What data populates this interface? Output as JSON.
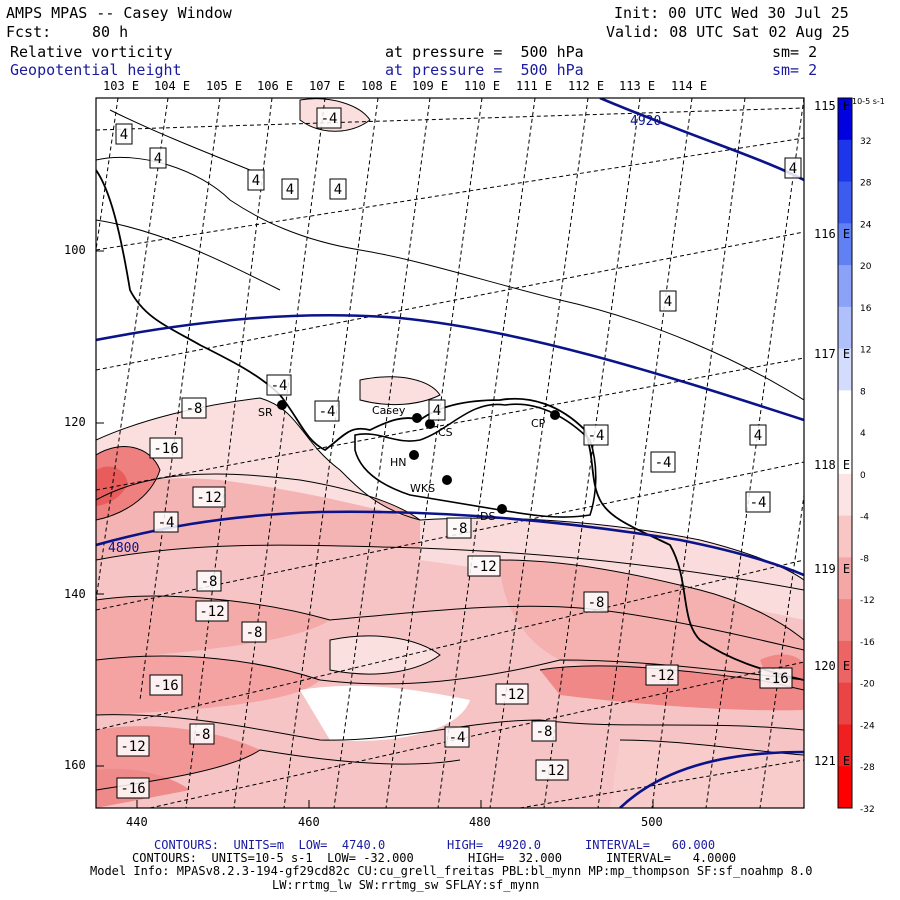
{
  "header": {
    "title": "AMPS MPAS -- Casey Window",
    "init": "Init: 00 UTC Wed 30 Jul 25",
    "fcst_label": "Fcst:",
    "fcst_value": "80 h",
    "valid": "Valid: 08 UTC Sat 02 Aug 25",
    "field1_name": "Relative vorticity",
    "field1_level": "at pressure =  500 hPa",
    "field1_sm": "sm= 2",
    "field2_name": "Geopotential height",
    "field2_level": "at pressure =  500 hPa",
    "field2_sm": "sm= 2"
  },
  "top_lon_labels": [
    "103 E",
    "104 E",
    "105 E",
    "106 E",
    "107 E",
    "108 E",
    "109 E",
    "110 E",
    "111 E",
    "112 E",
    "113 E",
    "114 E"
  ],
  "right_lon_labels": [
    "115 E",
    "116 E",
    "117 E",
    "118 E",
    "119 E",
    "120 E",
    "121 E"
  ],
  "x_ticks": [
    "440",
    "460",
    "480",
    "500"
  ],
  "y_ticks": [
    "100",
    "120",
    "140",
    "160"
  ],
  "colorbar": {
    "unit_label": "10-5 s-1",
    "ticks": [
      "32",
      "28",
      "24",
      "20",
      "16",
      "12",
      "8",
      "4",
      "0",
      "-4",
      "-8",
      "-12",
      "-16",
      "-20",
      "-24",
      "-28",
      "-32"
    ],
    "colors": [
      "#0000e0",
      "#1e36ea",
      "#3c5cf0",
      "#6080f4",
      "#8aa2f8",
      "#b0c0fb",
      "#d4dcfd",
      "#ffffff",
      "#ffffff",
      "#fde4e4",
      "#f9c6c6",
      "#f5a6a6",
      "#f08686",
      "#ec6464",
      "#ea4444",
      "#f02020",
      "#ff0000"
    ]
  },
  "stations": [
    {
      "label": "SR"
    },
    {
      "label": "Casey"
    },
    {
      "label": "CS"
    },
    {
      "label": "HN"
    },
    {
      "label": "WKS"
    },
    {
      "label": "DS"
    },
    {
      "label": "CP"
    }
  ],
  "height_contour_labels": [
    "4920",
    "4800"
  ],
  "vorticity_labels": [
    "4",
    "-4",
    "4",
    "4",
    "4",
    "4",
    "4",
    "4",
    "4",
    "4",
    "-4",
    "-8",
    "-4",
    "-4",
    "-4",
    "-4",
    "-16",
    "-12",
    "-4",
    "-8",
    "-12",
    "-8",
    "-12",
    "-8",
    "-12",
    "-16",
    "-12",
    "-16",
    "-12",
    "-8",
    "-4",
    "-8",
    "-12",
    "-8",
    "-16"
  ],
  "footer": {
    "line1_a": "CONTOURS:  UNITS=m  LOW=  4740.0",
    "line1_b": "HIGH=  4920.0",
    "line1_c": "INTERVAL=   60.000",
    "line2_a": "CONTOURS:  UNITS=10-5 s-1  LOW= -32.000",
    "line2_b": "HIGH=  32.000",
    "line2_c": "INTERVAL=   4.0000",
    "line3": "Model Info: MPASv8.2.3-194-gf29cd82c CU:cu_grell_freitas PBL:bl_mynn MP:mp_thompson SF:sf_noahmp 8.0",
    "line4": "LW:rrtmg_lw SW:rrtmg_sw SFLAY:sf_mynn"
  }
}
